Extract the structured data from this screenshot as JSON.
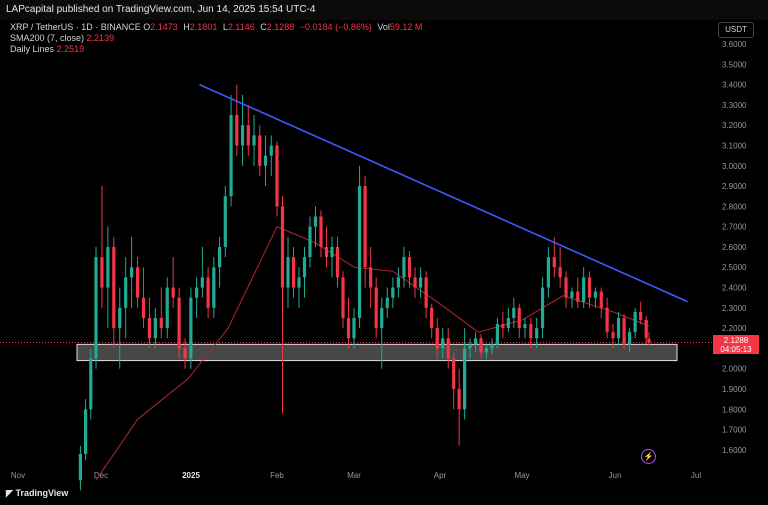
{
  "header": {
    "published_line": "LAPcapital published on TradingView.com, Jun 14, 2025 15:54 UTC-4"
  },
  "legend": {
    "symbol": "XRP / TetherUS · 1D · BINANCE",
    "open_label": "O",
    "open": "2.1473",
    "high_label": "H",
    "high": "2.1801",
    "low_label": "L",
    "low": "2.1146",
    "close_label": "C",
    "close": "2.1288",
    "change": "−0.0184 (−0.86%)",
    "vol_label": "Vol",
    "vol": "59.12 M",
    "sma_label": "SMA200 (7, close)",
    "sma_value": "2.2139",
    "lines_label": "Daily Lines",
    "lines_value": "2.2519"
  },
  "currency_button": "USDT",
  "price_tag": {
    "price": "2.1288",
    "countdown": "04:05:13"
  },
  "footer": {
    "brand": "TradingView"
  },
  "colors": {
    "up": "#22ab94",
    "down": "#f23645",
    "trendline": "#3d5afe",
    "sma": "#b2282d",
    "bg": "#000000"
  },
  "icons": {
    "lightning": "lightning-icon",
    "logo": "tradingview-logo-icon"
  },
  "chart_data": {
    "type": "candlestick",
    "y_ticks": [
      "3.6000",
      "3.5000",
      "3.4000",
      "3.3000",
      "3.2000",
      "3.1000",
      "3.0000",
      "2.9000",
      "2.8000",
      "2.7000",
      "2.6000",
      "2.5000",
      "2.4000",
      "2.3000",
      "2.2000",
      "2.1000",
      "2.0000",
      "1.9000",
      "1.8000",
      "1.7000",
      "1.6000"
    ],
    "ylim": [
      1.55,
      3.62
    ],
    "x_ticks": [
      "Nov",
      "Dec",
      "2025",
      "Feb",
      "Mar",
      "Apr",
      "May",
      "Jun",
      "Jul"
    ],
    "support_zone": [
      2.04,
      2.12
    ],
    "trendline": {
      "from": [
        "2025-01-05",
        3.4
      ],
      "to": [
        "2025-06-28",
        2.33
      ]
    },
    "last_close": 2.1288,
    "candles": [
      [
        "Nov 25",
        1.45,
        1.62,
        1.4,
        1.58
      ],
      [
        "Nov 27",
        1.58,
        1.85,
        1.55,
        1.8
      ],
      [
        "Nov 29",
        1.8,
        2.1,
        1.75,
        2.05
      ],
      [
        "Dec 01",
        2.05,
        2.6,
        2.0,
        2.55
      ],
      [
        "Dec 03",
        2.55,
        2.9,
        2.3,
        2.4
      ],
      [
        "Dec 05",
        2.4,
        2.7,
        2.2,
        2.6
      ],
      [
        "Dec 07",
        2.6,
        2.65,
        2.1,
        2.2
      ],
      [
        "Dec 09",
        2.2,
        2.4,
        2.0,
        2.3
      ],
      [
        "Dec 11",
        2.3,
        2.55,
        2.15,
        2.45
      ],
      [
        "Dec 13",
        2.45,
        2.65,
        2.3,
        2.5
      ],
      [
        "Dec 15",
        2.5,
        2.55,
        2.3,
        2.35
      ],
      [
        "Dec 17",
        2.35,
        2.5,
        2.2,
        2.25
      ],
      [
        "Dec 19",
        2.25,
        2.35,
        2.1,
        2.15
      ],
      [
        "Dec 21",
        2.15,
        2.3,
        2.1,
        2.25
      ],
      [
        "Dec 23",
        2.25,
        2.4,
        2.15,
        2.2
      ],
      [
        "Dec 25",
        2.2,
        2.45,
        2.15,
        2.4
      ],
      [
        "Dec 27",
        2.4,
        2.55,
        2.3,
        2.35
      ],
      [
        "Dec 29",
        2.35,
        2.4,
        2.05,
        2.1
      ],
      [
        "Dec 31",
        2.1,
        2.15,
        2.0,
        2.05
      ],
      [
        "Jan 02",
        2.05,
        2.4,
        2.0,
        2.35
      ],
      [
        "Jan 04",
        2.35,
        2.45,
        2.25,
        2.4
      ],
      [
        "Jan 06",
        2.4,
        2.6,
        2.35,
        2.45
      ],
      [
        "Jan 08",
        2.45,
        2.5,
        2.25,
        2.3
      ],
      [
        "Jan 10",
        2.3,
        2.55,
        2.25,
        2.5
      ],
      [
        "Jan 12",
        2.5,
        2.65,
        2.4,
        2.6
      ],
      [
        "Jan 14",
        2.6,
        2.9,
        2.55,
        2.85
      ],
      [
        "Jan 16",
        2.85,
        3.35,
        2.8,
        3.25
      ],
      [
        "Jan 18",
        3.25,
        3.4,
        3.05,
        3.1
      ],
      [
        "Jan 20",
        3.1,
        3.35,
        3.0,
        3.2
      ],
      [
        "Jan 22",
        3.2,
        3.3,
        3.05,
        3.1
      ],
      [
        "Jan 24",
        3.1,
        3.25,
        3.0,
        3.15
      ],
      [
        "Jan 26",
        3.15,
        3.2,
        2.95,
        3.0
      ],
      [
        "Jan 28",
        3.0,
        3.15,
        2.9,
        3.05
      ],
      [
        "Jan 30",
        3.05,
        3.15,
        2.95,
        3.1
      ],
      [
        "Feb 01",
        3.1,
        3.12,
        2.75,
        2.8
      ],
      [
        "Feb 03",
        2.8,
        2.85,
        1.78,
        2.4
      ],
      [
        "Feb 05",
        2.4,
        2.65,
        2.3,
        2.55
      ],
      [
        "Feb 07",
        2.55,
        2.6,
        2.35,
        2.4
      ],
      [
        "Feb 09",
        2.4,
        2.5,
        2.3,
        2.45
      ],
      [
        "Feb 11",
        2.45,
        2.6,
        2.35,
        2.55
      ],
      [
        "Feb 13",
        2.55,
        2.75,
        2.5,
        2.7
      ],
      [
        "Feb 15",
        2.7,
        2.8,
        2.6,
        2.75
      ],
      [
        "Feb 17",
        2.75,
        2.78,
        2.55,
        2.6
      ],
      [
        "Feb 19",
        2.6,
        2.7,
        2.5,
        2.55
      ],
      [
        "Feb 21",
        2.55,
        2.65,
        2.45,
        2.6
      ],
      [
        "Feb 23",
        2.6,
        2.65,
        2.4,
        2.45
      ],
      [
        "Feb 25",
        2.45,
        2.48,
        2.2,
        2.25
      ],
      [
        "Feb 27",
        2.25,
        2.35,
        2.1,
        2.15
      ],
      [
        "Mar 01",
        2.15,
        2.3,
        2.1,
        2.25
      ],
      [
        "Mar 03",
        2.25,
        3.0,
        2.2,
        2.9
      ],
      [
        "Mar 05",
        2.9,
        2.95,
        2.4,
        2.5
      ],
      [
        "Mar 07",
        2.5,
        2.6,
        2.3,
        2.4
      ],
      [
        "Mar 09",
        2.4,
        2.45,
        2.15,
        2.2
      ],
      [
        "Mar 11",
        2.2,
        2.35,
        2.0,
        2.3
      ],
      [
        "Mar 13",
        2.3,
        2.4,
        2.25,
        2.35
      ],
      [
        "Mar 15",
        2.35,
        2.45,
        2.3,
        2.4
      ],
      [
        "Mar 17",
        2.4,
        2.5,
        2.35,
        2.45
      ],
      [
        "Mar 19",
        2.45,
        2.6,
        2.4,
        2.55
      ],
      [
        "Mar 21",
        2.55,
        2.58,
        2.4,
        2.45
      ],
      [
        "Mar 23",
        2.45,
        2.5,
        2.35,
        2.4
      ],
      [
        "Mar 25",
        2.4,
        2.5,
        2.35,
        2.45
      ],
      [
        "Mar 27",
        2.45,
        2.48,
        2.25,
        2.3
      ],
      [
        "Mar 29",
        2.3,
        2.32,
        2.15,
        2.2
      ],
      [
        "Mar 31",
        2.2,
        2.25,
        2.05,
        2.1
      ],
      [
        "Apr 02",
        2.1,
        2.2,
        2.05,
        2.15
      ],
      [
        "Apr 04",
        2.15,
        2.2,
        2.0,
        2.05
      ],
      [
        "Apr 06",
        2.05,
        2.08,
        1.8,
        1.9
      ],
      [
        "Apr 08",
        1.9,
        2.0,
        1.62,
        1.8
      ],
      [
        "Apr 10",
        1.8,
        2.2,
        1.75,
        2.1
      ],
      [
        "Apr 12",
        2.1,
        2.15,
        2.05,
        2.12
      ],
      [
        "Apr 14",
        2.12,
        2.18,
        2.08,
        2.15
      ],
      [
        "Apr 16",
        2.15,
        2.17,
        2.05,
        2.08
      ],
      [
        "Apr 18",
        2.08,
        2.12,
        2.05,
        2.1
      ],
      [
        "Apr 20",
        2.1,
        2.15,
        2.07,
        2.12
      ],
      [
        "Apr 22",
        2.12,
        2.25,
        2.1,
        2.22
      ],
      [
        "Apr 24",
        2.22,
        2.28,
        2.15,
        2.2
      ],
      [
        "Apr 26",
        2.2,
        2.3,
        2.18,
        2.25
      ],
      [
        "Apr 28",
        2.25,
        2.35,
        2.2,
        2.3
      ],
      [
        "Apr 30",
        2.3,
        2.32,
        2.15,
        2.2
      ],
      [
        "May 02",
        2.2,
        2.25,
        2.15,
        2.22
      ],
      [
        "May 04",
        2.22,
        2.25,
        2.1,
        2.15
      ],
      [
        "May 06",
        2.15,
        2.25,
        2.1,
        2.2
      ],
      [
        "May 08",
        2.2,
        2.45,
        2.15,
        2.4
      ],
      [
        "May 10",
        2.4,
        2.6,
        2.35,
        2.55
      ],
      [
        "May 12",
        2.55,
        2.65,
        2.45,
        2.5
      ],
      [
        "May 14",
        2.5,
        2.6,
        2.4,
        2.45
      ],
      [
        "May 16",
        2.45,
        2.48,
        2.3,
        2.35
      ],
      [
        "May 18",
        2.35,
        2.4,
        2.3,
        2.38
      ],
      [
        "May 20",
        2.38,
        2.45,
        2.3,
        2.33
      ],
      [
        "May 22",
        2.33,
        2.5,
        2.3,
        2.45
      ],
      [
        "May 24",
        2.45,
        2.48,
        2.3,
        2.35
      ],
      [
        "May 26",
        2.35,
        2.4,
        2.3,
        2.38
      ],
      [
        "May 28",
        2.38,
        2.4,
        2.25,
        2.3
      ],
      [
        "May 30",
        2.3,
        2.35,
        2.15,
        2.18
      ],
      [
        "Jun 01",
        2.18,
        2.22,
        2.1,
        2.15
      ],
      [
        "Jun 03",
        2.15,
        2.28,
        2.12,
        2.25
      ],
      [
        "Jun 05",
        2.25,
        2.27,
        2.1,
        2.12
      ],
      [
        "Jun 07",
        2.12,
        2.2,
        2.08,
        2.18
      ],
      [
        "Jun 09",
        2.18,
        2.3,
        2.15,
        2.28
      ],
      [
        "Jun 11",
        2.28,
        2.33,
        2.22,
        2.24
      ],
      [
        "Jun 13",
        2.24,
        2.26,
        2.12,
        2.15
      ],
      [
        "Jun 14",
        2.1473,
        2.1801,
        2.1146,
        2.1288
      ]
    ],
    "sma_points": [
      [
        "Dec 01",
        1.45
      ],
      [
        "Dec 15",
        1.75
      ],
      [
        "Jan 01",
        1.95
      ],
      [
        "Jan 15",
        2.2
      ],
      [
        "Feb 01",
        2.7
      ],
      [
        "Feb 15",
        2.62
      ],
      [
        "Mar 01",
        2.5
      ],
      [
        "Mar 15",
        2.48
      ],
      [
        "Apr 01",
        2.32
      ],
      [
        "Apr 15",
        2.18
      ],
      [
        "May 01",
        2.24
      ],
      [
        "May 15",
        2.36
      ],
      [
        "Jun 01",
        2.28
      ],
      [
        "Jun 14",
        2.21
      ]
    ]
  }
}
